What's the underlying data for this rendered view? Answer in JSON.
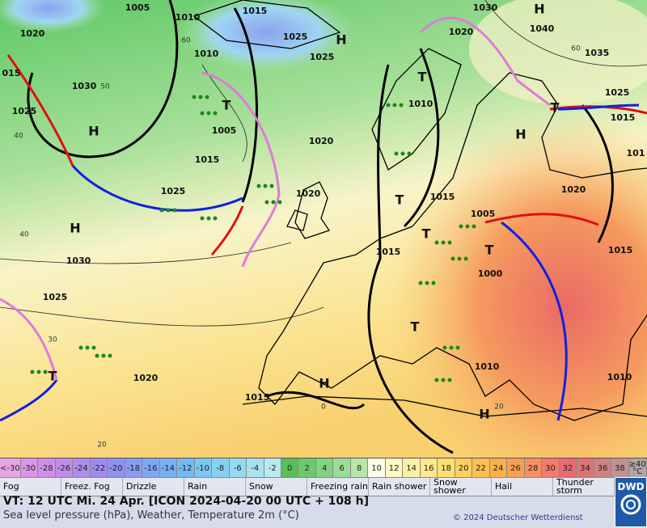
{
  "map": {
    "isobar_labels": [
      1005,
      1010,
      1015,
      1020,
      1010,
      1025,
      1025,
      1030,
      1020,
      1040,
      1035,
      "015",
      1030,
      1025,
      1005,
      1010,
      1025,
      1015,
      "101",
      1020,
      1015,
      1025,
      1020,
      1015,
      1020,
      1005,
      1030,
      1015,
      1000,
      1015,
      1025,
      1010,
      1010,
      1020,
      1015
    ],
    "high_labels": [
      "H",
      "H",
      "H",
      "H",
      "H",
      "H",
      "H"
    ],
    "low_labels": [
      "T",
      "T",
      "T",
      "T",
      "T",
      "T",
      "T",
      "T"
    ],
    "graticule_labels": [
      60,
      50,
      40,
      40,
      30,
      20,
      0,
      20,
      60
    ]
  },
  "color_scale": {
    "items": [
      {
        "label": "<-30",
        "color": "#e6a6e6"
      },
      {
        "label": -30,
        "color": "#dc94e4"
      },
      {
        "label": -28,
        "color": "#cf8fe6"
      },
      {
        "label": -26,
        "color": "#c08ce8"
      },
      {
        "label": -24,
        "color": "#b08aec"
      },
      {
        "label": -22,
        "color": "#a08aee"
      },
      {
        "label": -20,
        "color": "#8f92f0"
      },
      {
        "label": -18,
        "color": "#889cf2"
      },
      {
        "label": -16,
        "color": "#80a6f2"
      },
      {
        "label": -14,
        "color": "#78b0f2"
      },
      {
        "label": -12,
        "color": "#74baf2"
      },
      {
        "label": -10,
        "color": "#7cc6f2"
      },
      {
        "label": -8,
        "color": "#88d0f2"
      },
      {
        "label": -6,
        "color": "#96daf2"
      },
      {
        "label": -4,
        "color": "#a8e2f0"
      },
      {
        "label": -2,
        "color": "#baeaf0"
      },
      {
        "label": 0,
        "color": "#5cbd5c"
      },
      {
        "label": 2,
        "color": "#6ec86e"
      },
      {
        "label": 4,
        "color": "#84d284"
      },
      {
        "label": 6,
        "color": "#9cdc96"
      },
      {
        "label": 8,
        "color": "#b8e6aa"
      },
      {
        "label": 10,
        "color": "#fdfde8"
      },
      {
        "label": 12,
        "color": "#fdf8c4"
      },
      {
        "label": 14,
        "color": "#fdf0a4"
      },
      {
        "label": 16,
        "color": "#fde88a"
      },
      {
        "label": 18,
        "color": "#fde070"
      },
      {
        "label": 20,
        "color": "#fdd060"
      },
      {
        "label": 22,
        "color": "#fcc052"
      },
      {
        "label": 24,
        "color": "#fbb04c"
      },
      {
        "label": 26,
        "color": "#f9a050"
      },
      {
        "label": 28,
        "color": "#f69060"
      },
      {
        "label": 30,
        "color": "#f27a6e"
      },
      {
        "label": 32,
        "color": "#e86a72"
      },
      {
        "label": 34,
        "color": "#dc7476"
      },
      {
        "label": 36,
        "color": "#cf8282"
      },
      {
        "label": 38,
        "color": "#c29292"
      },
      {
        "label": "≥40 °C",
        "color": "#b5a2a2"
      }
    ]
  },
  "weather_legend": [
    "Fog",
    "Freez. Fog",
    "Drizzle",
    "Rain",
    "Snow",
    "Freezing rain",
    "Rain shower",
    "Snow shower",
    "Hail",
    "Thunder storm"
  ],
  "footer": {
    "valid_time": "VT: 12 UTC Mi.  24 Apr. [ICON 2024-04-20  00 UTC + 108 h]",
    "description": "Sea level pressure (hPa), Weather, Temperature 2m (°C)",
    "copyright": "© 2024 Deutscher Wetterdienst",
    "logo": "DWD"
  }
}
